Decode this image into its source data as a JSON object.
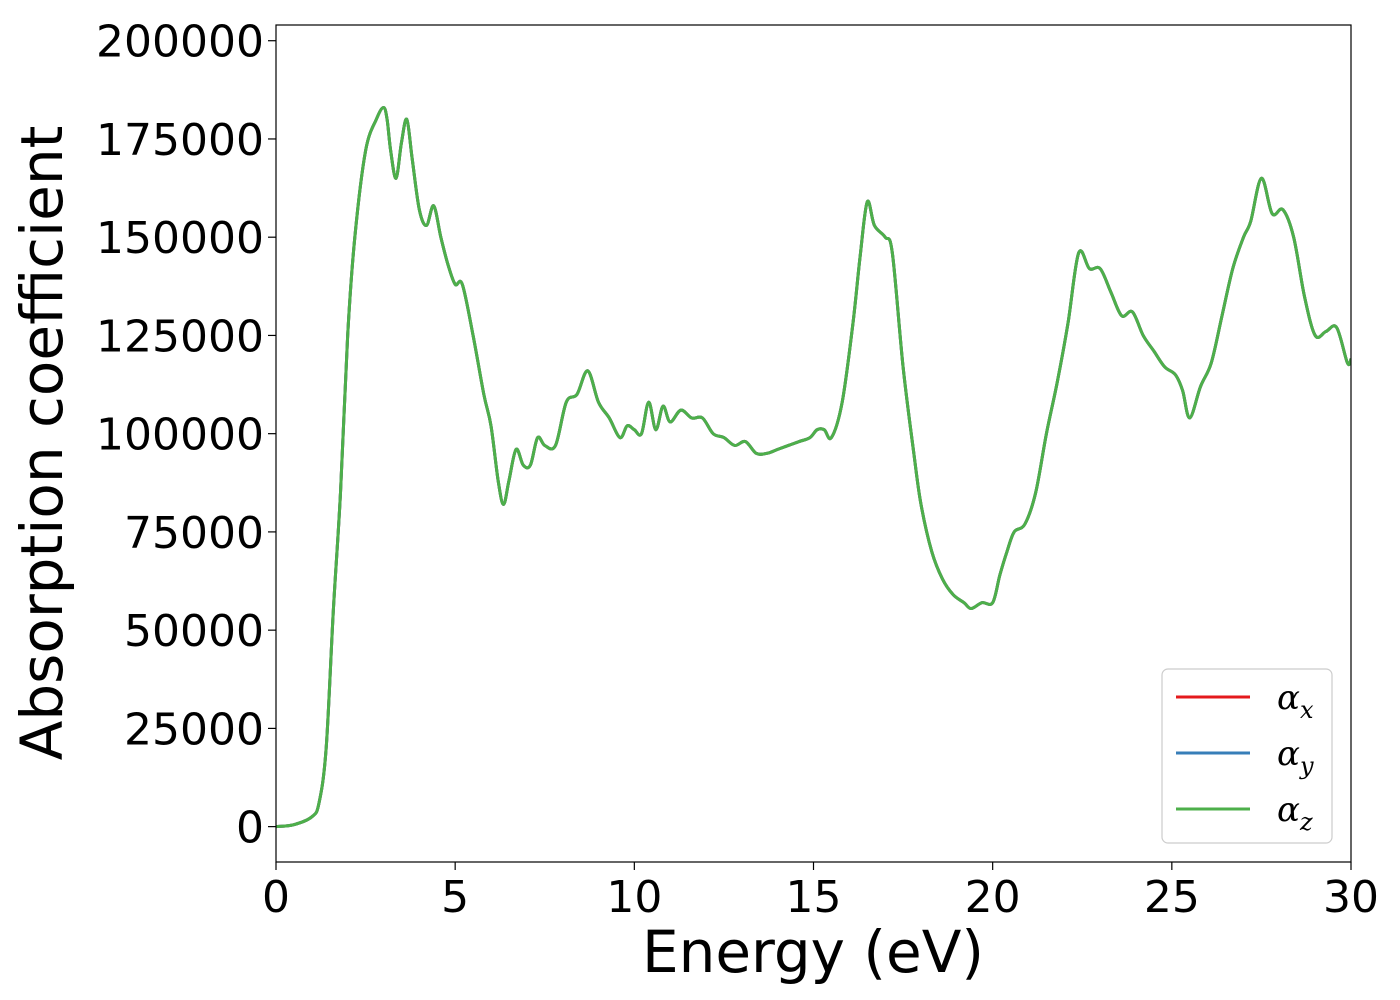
{
  "chart_data": {
    "type": "line",
    "title": "",
    "xlabel": "Energy (eV)",
    "ylabel": "Absorption coefficient",
    "xlim": [
      0,
      30
    ],
    "ylim": [
      -9000,
      204000
    ],
    "xticks": [
      0,
      5,
      10,
      15,
      20,
      25,
      30
    ],
    "yticks": [
      0,
      25000,
      50000,
      75000,
      100000,
      125000,
      150000,
      175000,
      200000
    ],
    "grid": false,
    "legend_position": "bottom-right",
    "legend": [
      {
        "base": "α",
        "sub": "x",
        "color": "#e41a1c"
      },
      {
        "base": "α",
        "sub": "y",
        "color": "#377eb8"
      },
      {
        "base": "α",
        "sub": "z",
        "color": "#4daf4a"
      }
    ],
    "x": [
      0,
      0.5,
      1.0,
      1.2,
      1.4,
      1.6,
      1.8,
      2.0,
      2.2,
      2.5,
      2.8,
      3.0,
      3.1,
      3.2,
      3.35,
      3.5,
      3.65,
      3.8,
      4.0,
      4.2,
      4.4,
      4.6,
      4.8,
      5.0,
      5.2,
      5.5,
      5.8,
      6.0,
      6.2,
      6.35,
      6.5,
      6.7,
      6.9,
      7.1,
      7.3,
      7.5,
      7.8,
      8.1,
      8.4,
      8.7,
      9.0,
      9.3,
      9.6,
      9.8,
      10.0,
      10.2,
      10.4,
      10.6,
      10.8,
      11.0,
      11.3,
      11.6,
      11.9,
      12.2,
      12.5,
      12.8,
      13.1,
      13.4,
      13.7,
      14.0,
      14.3,
      14.6,
      14.9,
      15.1,
      15.3,
      15.5,
      15.8,
      16.1,
      16.3,
      16.5,
      16.7,
      17.0,
      17.2,
      17.5,
      17.8,
      18.0,
      18.3,
      18.6,
      18.9,
      19.2,
      19.4,
      19.7,
      20.0,
      20.2,
      20.4,
      20.6,
      20.9,
      21.2,
      21.5,
      21.8,
      22.1,
      22.4,
      22.7,
      23.0,
      23.3,
      23.6,
      23.9,
      24.2,
      24.5,
      24.8,
      25.1,
      25.3,
      25.5,
      25.8,
      26.1,
      26.4,
      26.7,
      27.0,
      27.2,
      27.5,
      27.8,
      28.1,
      28.4,
      28.7,
      29.0,
      29.3,
      29.6,
      29.9,
      30.0
    ],
    "series": [
      {
        "name": "αx",
        "color": "#e41a1c",
        "values": [
          0,
          500,
          2500,
          6000,
          20000,
          55000,
          85000,
          125000,
          150000,
          172000,
          180000,
          183000,
          180000,
          172000,
          165000,
          174000,
          180000,
          170000,
          157000,
          153000,
          158000,
          150000,
          143000,
          138000,
          138000,
          125000,
          110000,
          102000,
          88000,
          82000,
          88000,
          96000,
          92000,
          92000,
          99000,
          97000,
          97000,
          108000,
          110000,
          116000,
          108000,
          104000,
          99000,
          102000,
          101000,
          100000,
          108000,
          101000,
          107000,
          103000,
          106000,
          104000,
          104000,
          100000,
          99000,
          97000,
          98000,
          95000,
          95000,
          96000,
          97000,
          98000,
          99000,
          101000,
          101000,
          99000,
          108000,
          128000,
          145000,
          159000,
          153000,
          150000,
          146000,
          117000,
          95000,
          82000,
          70000,
          63000,
          59000,
          57000,
          55500,
          57000,
          57000,
          64000,
          70000,
          75000,
          77000,
          85000,
          100000,
          113000,
          128000,
          146000,
          142000,
          142000,
          136000,
          130000,
          131000,
          125000,
          121000,
          117000,
          115000,
          111000,
          104000,
          112000,
          118000,
          130000,
          142000,
          150000,
          154000,
          165000,
          156000,
          157000,
          150000,
          135000,
          125000,
          126000,
          127000,
          118000,
          119000
        ]
      },
      {
        "name": "αy",
        "color": "#377eb8",
        "values": [
          0,
          500,
          2500,
          6000,
          20000,
          55000,
          85000,
          125000,
          150000,
          172000,
          180000,
          183000,
          180000,
          172000,
          165000,
          174000,
          180000,
          170000,
          157000,
          153000,
          158000,
          150000,
          143000,
          138000,
          138000,
          125000,
          110000,
          102000,
          88000,
          82000,
          88000,
          96000,
          92000,
          92000,
          99000,
          97000,
          97000,
          108000,
          110000,
          116000,
          108000,
          104000,
          99000,
          102000,
          101000,
          100000,
          108000,
          101000,
          107000,
          103000,
          106000,
          104000,
          104000,
          100000,
          99000,
          97000,
          98000,
          95000,
          95000,
          96000,
          97000,
          98000,
          99000,
          101000,
          101000,
          99000,
          108000,
          128000,
          145000,
          159000,
          153000,
          150000,
          146000,
          117000,
          95000,
          82000,
          70000,
          63000,
          59000,
          57000,
          55500,
          57000,
          57000,
          64000,
          70000,
          75000,
          77000,
          85000,
          100000,
          113000,
          128000,
          146000,
          142000,
          142000,
          136000,
          130000,
          131000,
          125000,
          121000,
          117000,
          115000,
          111000,
          104000,
          112000,
          118000,
          130000,
          142000,
          150000,
          154000,
          165000,
          156000,
          157000,
          150000,
          135000,
          125000,
          126000,
          127000,
          118000,
          119000
        ]
      },
      {
        "name": "αz",
        "color": "#4daf4a",
        "values": [
          0,
          500,
          2500,
          6000,
          20000,
          55000,
          85000,
          125000,
          150000,
          172000,
          180000,
          183000,
          180000,
          172000,
          165000,
          174000,
          180000,
          170000,
          157000,
          153000,
          158000,
          150000,
          143000,
          138000,
          138000,
          125000,
          110000,
          102000,
          88000,
          82000,
          88000,
          96000,
          92000,
          92000,
          99000,
          97000,
          97000,
          108000,
          110000,
          116000,
          108000,
          104000,
          99000,
          102000,
          101000,
          100000,
          108000,
          101000,
          107000,
          103000,
          106000,
          104000,
          104000,
          100000,
          99000,
          97000,
          98000,
          95000,
          95000,
          96000,
          97000,
          98000,
          99000,
          101000,
          101000,
          99000,
          108000,
          128000,
          145000,
          159000,
          153000,
          150000,
          146000,
          117000,
          95000,
          82000,
          70000,
          63000,
          59000,
          57000,
          55500,
          57000,
          57000,
          64000,
          70000,
          75000,
          77000,
          85000,
          100000,
          113000,
          128000,
          146000,
          142000,
          142000,
          136000,
          130000,
          131000,
          125000,
          121000,
          117000,
          115000,
          111000,
          104000,
          112000,
          118000,
          130000,
          142000,
          150000,
          154000,
          165000,
          156000,
          157000,
          150000,
          135000,
          125000,
          126000,
          127000,
          118000,
          119000
        ]
      }
    ]
  }
}
